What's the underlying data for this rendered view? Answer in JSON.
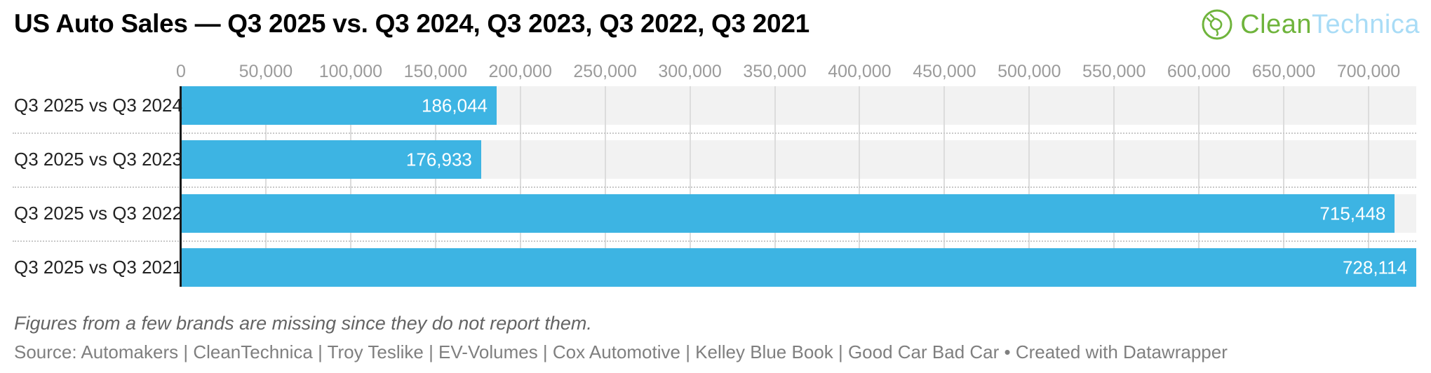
{
  "header": {
    "title": "US Auto Sales — Q3 2025 vs. Q3 2024, Q3 2023, Q3 2022, Q3 2021",
    "logo": {
      "clean": "Clean",
      "technica": "Technica",
      "icon": "cleantechnica-plug-leaf-icon",
      "green": "#6fb43c",
      "blue": "#a9dcf6"
    }
  },
  "chart_data": {
    "type": "bar",
    "orientation": "horizontal",
    "title": "US Auto Sales — Q3 2025 vs. Q3 2024, Q3 2023, Q3 2022, Q3 2021",
    "categories": [
      "Q3 2025 vs Q3 2024",
      "Q3 2025 vs Q3 2023",
      "Q3 2025 vs Q3 2022",
      "Q3 2025 vs Q3 2021"
    ],
    "values": [
      186044,
      176933,
      715448,
      728114
    ],
    "value_labels": [
      "186,044",
      "176,933",
      "715,448",
      "728,114"
    ],
    "xlabel": "",
    "ylabel": "",
    "xlim": [
      0,
      728114
    ],
    "x_ticks": [
      0,
      50000,
      100000,
      150000,
      200000,
      250000,
      300000,
      350000,
      400000,
      450000,
      500000,
      550000,
      600000,
      650000,
      700000
    ],
    "x_tick_labels": [
      "0",
      "50,000",
      "100,000",
      "150,000",
      "200,000",
      "250,000",
      "300,000",
      "350,000",
      "400,000",
      "450,000",
      "500,000",
      "550,000",
      "600,000",
      "650,000",
      "700,000"
    ],
    "grid": true,
    "legend": false,
    "bar_color": "#3db4e3",
    "track_color": "#f2f2f2",
    "gridline_color": "#dcdcdc",
    "axis_line_color": "#1a1a1a"
  },
  "footer": {
    "note": "Figures from a few brands are missing since they do not report them.",
    "source": "Source: Automakers | CleanTechnica | Troy Teslike | EV-Volumes | Cox Automotive | Kelley Blue Book | Good Car Bad Car • Created with Datawrapper"
  }
}
